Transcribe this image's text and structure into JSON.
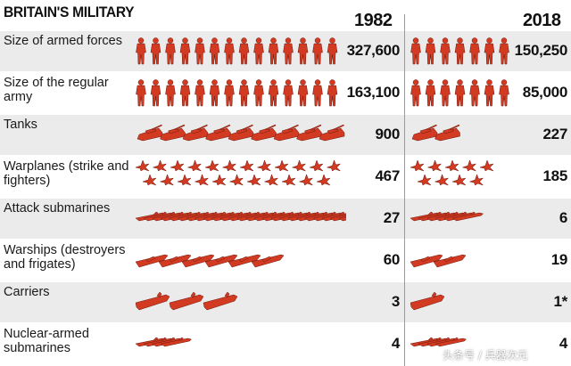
{
  "chart_data": {
    "type": "table",
    "title": "BRITAIN'S MILITARY",
    "columns": [
      "1982",
      "2018"
    ],
    "rows": [
      {
        "label": "Size of armed forces",
        "icon": "soldier-icon",
        "v1982": "327,600",
        "v2018": "150,250",
        "n1982": 14,
        "n2018": 7
      },
      {
        "label": "Size of the regular army",
        "icon": "soldier-icon",
        "v1982": "163,100",
        "v2018": "85,000",
        "n1982": 14,
        "n2018": 7
      },
      {
        "label": "Tanks",
        "icon": "tank-icon",
        "v1982": "900",
        "v2018": "227",
        "n1982": 9,
        "n2018": 2
      },
      {
        "label": "Warplanes (strike and fighters)",
        "icon": "warplane-icon",
        "v1982": "467",
        "v2018": "185",
        "n1982": 23,
        "n2018": 9
      },
      {
        "label": "Attack submarines",
        "icon": "submarine-icon",
        "v1982": "27",
        "v2018": "6",
        "n1982": 27,
        "n2018": 6
      },
      {
        "label": "Warships (destroyers and frigates)",
        "icon": "warship-icon",
        "v1982": "60",
        "v2018": "19",
        "n1982": 6,
        "n2018": 2
      },
      {
        "label": "Carriers",
        "icon": "carrier-icon",
        "v1982": "3",
        "v2018": "1*",
        "n1982": 3,
        "n2018": 1
      },
      {
        "label": "Nuclear-armed submarines",
        "icon": "submarine-icon",
        "v1982": "4",
        "v2018": "4",
        "n1982": 4,
        "n2018": 4
      }
    ],
    "colors": {
      "icon": "#d23a22",
      "shade": "#ebebeb"
    }
  },
  "watermark": "头条号 / 兵器次元"
}
